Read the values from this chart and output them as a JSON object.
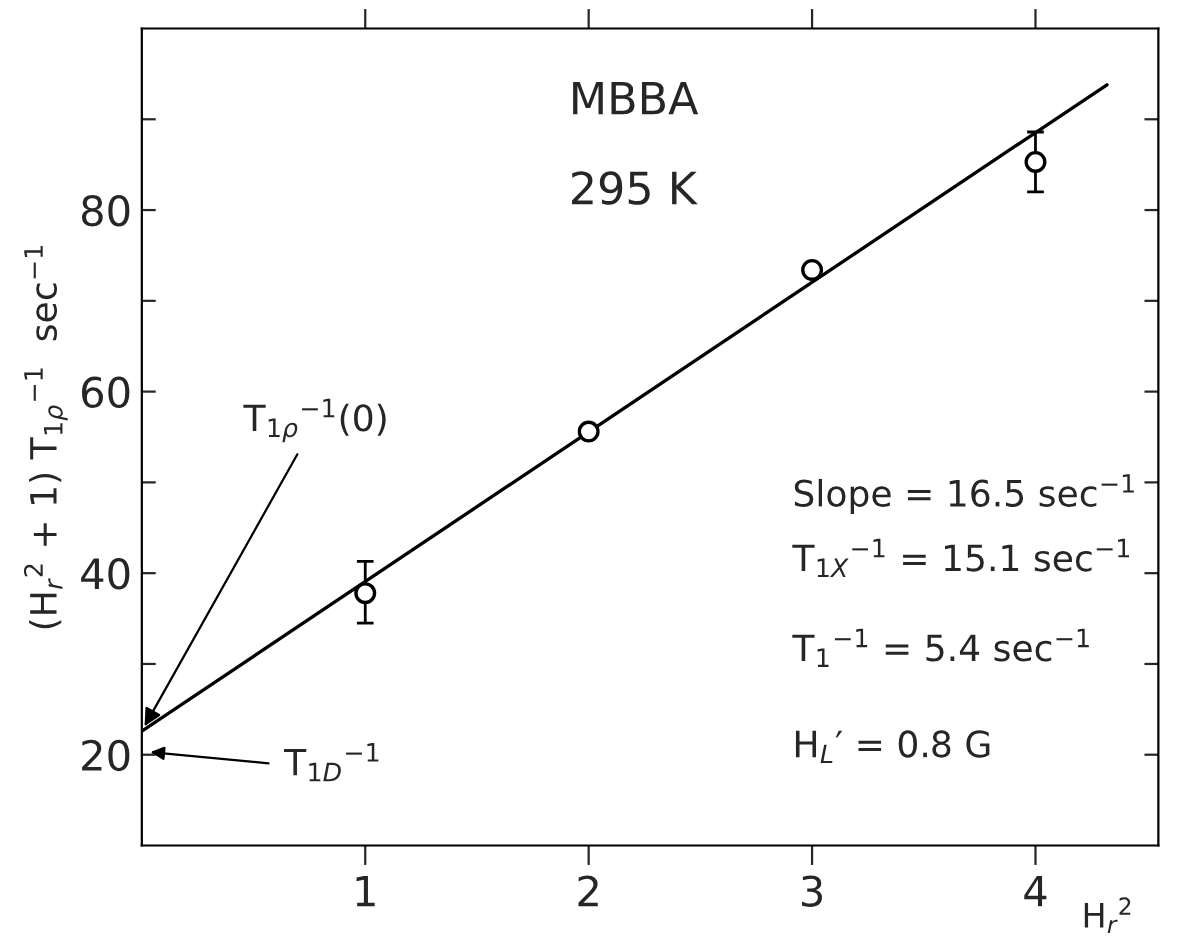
{
  "chart_data": {
    "type": "scatter",
    "xlabel": "H$_{r}$$^{2}$",
    "ylabel": "(H$_{r}$$^{2}$ + 1) T$_{1ρ}$$^{−1}$  sec$^{−1}$",
    "xlim": [
      0,
      4.55
    ],
    "ylim": [
      10,
      100
    ],
    "xticks": [
      1,
      2,
      3,
      4
    ],
    "yticks": [
      {
        "value": 20,
        "label": "20"
      },
      {
        "value": 30,
        "label": null
      },
      {
        "value": 40,
        "label": "40"
      },
      {
        "value": 50,
        "label": null
      },
      {
        "value": 60,
        "label": "60"
      },
      {
        "value": 70,
        "label": null
      },
      {
        "value": 80,
        "label": "80"
      },
      {
        "value": 90,
        "label": null
      }
    ],
    "grid": false,
    "marker": "circle",
    "series": [
      {
        "color": "#000000",
        "x": [
          1,
          2,
          3,
          4
        ],
        "values": [
          37.8,
          55.6,
          73.4,
          85.3
        ],
        "errors": [
          [
            34.5,
            41.3
          ],
          null,
          null,
          [
            82,
            88.6
          ]
        ]
      },
      {
        "type": "line",
        "marker": "none",
        "color": "#000000",
        "x": [
          0,
          4.32
        ],
        "values": [
          22.6,
          93.8
        ]
      }
    ],
    "annotations": [
      "MBBA",
      "295 K",
      "Slope = 16.5 sec$^{−1}$",
      "T$_{1X}$$^{−1}$ = 15.1 sec$^{−1}$",
      "T$_{1}$$^{−1}$ = 5.4 sec$^{−1}$",
      "H$_{L}$′ = 0.8 G",
      {
        "text": "T$_{1ρ}$$^{−1}$(0)",
        "x": 0,
        "y": 22.6
      },
      "T$_{1D}$$^{−1}$"
    ]
  }
}
